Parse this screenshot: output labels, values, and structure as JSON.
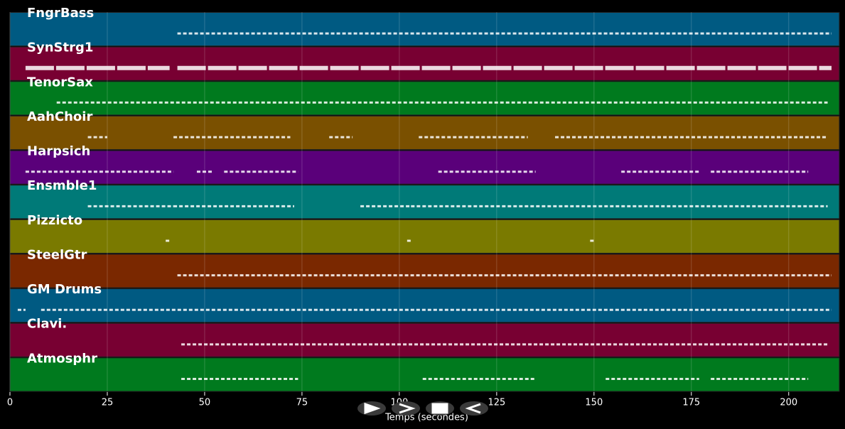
{
  "chart_data": {
    "type": "pianoroll",
    "xlabel": "Temps (secondes)",
    "xlim": [
      0,
      213
    ],
    "xticks": [
      0,
      25,
      50,
      75,
      100,
      125,
      150,
      175,
      200
    ],
    "grid": true,
    "series": [
      {
        "name": "FngrBass",
        "color": "#005a82",
        "segments": [
          [
            43,
            211
          ]
        ]
      },
      {
        "name": "SynStrg1",
        "color": "#780032",
        "segments": [
          [
            4,
            41
          ],
          [
            43,
            211
          ]
        ]
      },
      {
        "name": "TenorSax",
        "color": "#007a1e",
        "segments": [
          [
            12,
            210
          ]
        ]
      },
      {
        "name": "AahChoir",
        "color": "#7a5000",
        "segments": [
          [
            20,
            25
          ],
          [
            42,
            72
          ],
          [
            82,
            88
          ],
          [
            105,
            133
          ],
          [
            140,
            210
          ]
        ]
      },
      {
        "name": "Harpsich",
        "color": "#5a007a",
        "segments": [
          [
            4,
            42
          ],
          [
            48,
            52
          ],
          [
            55,
            74
          ],
          [
            110,
            135
          ],
          [
            157,
            177
          ],
          [
            180,
            205
          ]
        ]
      },
      {
        "name": "Ensmble1",
        "color": "#007a78",
        "segments": [
          [
            20,
            42
          ],
          [
            42,
            73
          ],
          [
            90,
            103
          ],
          [
            103,
            210
          ]
        ]
      },
      {
        "name": "Pizzicto",
        "color": "#7a7a00",
        "segments": [
          [
            40,
            41
          ],
          [
            102,
            103
          ],
          [
            149,
            150
          ]
        ]
      },
      {
        "name": "SteelGtr",
        "color": "#7a2800",
        "segments": [
          [
            43,
            211
          ]
        ]
      },
      {
        "name": "GM Drums",
        "color": "#005a82",
        "segments": [
          [
            2,
            4
          ],
          [
            8,
            211
          ]
        ]
      },
      {
        "name": "Clavi.",
        "color": "#780032",
        "segments": [
          [
            44,
            210
          ]
        ]
      },
      {
        "name": "Atmosphr",
        "color": "#007a1e",
        "segments": [
          [
            44,
            74
          ],
          [
            106,
            135
          ],
          [
            153,
            177
          ],
          [
            180,
            205
          ]
        ]
      }
    ]
  }
}
